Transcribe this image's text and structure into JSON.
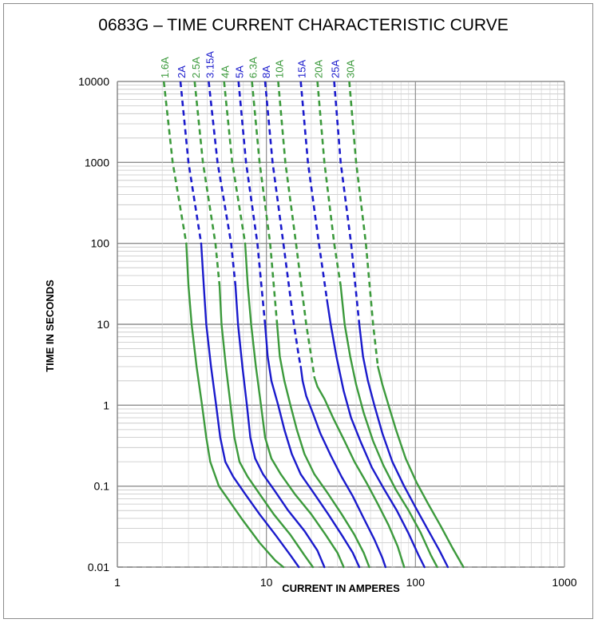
{
  "chart_data": {
    "type": "line",
    "title": "0683G – TIME CURRENT CHARACTERISTIC CURVE",
    "xlabel": "CURRENT IN AMPERES",
    "ylabel": "TIME IN SECONDS",
    "x_scale": "log",
    "y_scale": "log",
    "xlim": [
      1,
      1000
    ],
    "ylim": [
      0.01,
      10000
    ],
    "x_ticks": [
      "1",
      "10",
      "100",
      "1000"
    ],
    "y_ticks": [
      "10000",
      "1000",
      "100",
      "10",
      "1",
      "0.1",
      "0.01"
    ],
    "grid": true,
    "colors": {
      "green": "#3c9a3c",
      "blue": "#1a1acc",
      "grid": "#a6a6a6"
    },
    "series": [
      {
        "name": "1.6A",
        "color": "green",
        "dashed": [
          [
            2.05,
            10000
          ],
          [
            2.35,
            1000
          ],
          [
            2.9,
            100
          ]
        ],
        "solid": [
          [
            2.9,
            100
          ],
          [
            3.0,
            30
          ],
          [
            3.15,
            10
          ],
          [
            3.4,
            3
          ],
          [
            3.7,
            1
          ],
          [
            3.95,
            0.4
          ],
          [
            4.2,
            0.2
          ],
          [
            4.8,
            0.1
          ],
          [
            5.5,
            0.07
          ],
          [
            6.8,
            0.04
          ],
          [
            9.0,
            0.02
          ],
          [
            11.5,
            0.012
          ],
          [
            13,
            0.01
          ]
        ]
      },
      {
        "name": "2A",
        "color": "blue",
        "dashed": [
          [
            2.65,
            10000
          ],
          [
            3.0,
            1000
          ],
          [
            3.65,
            100
          ]
        ],
        "solid": [
          [
            3.65,
            100
          ],
          [
            3.8,
            30
          ],
          [
            3.95,
            10
          ],
          [
            4.25,
            3
          ],
          [
            4.6,
            1
          ],
          [
            4.9,
            0.4
          ],
          [
            5.3,
            0.2
          ],
          [
            6.0,
            0.13
          ],
          [
            7.2,
            0.08
          ],
          [
            9.0,
            0.045
          ],
          [
            11.5,
            0.025
          ],
          [
            14.5,
            0.014
          ],
          [
            16.5,
            0.01
          ]
        ]
      },
      {
        "name": "2.5A",
        "color": "green",
        "dashed": [
          [
            3.3,
            10000
          ],
          [
            3.75,
            1000
          ],
          [
            4.55,
            100
          ],
          [
            4.85,
            30
          ]
        ],
        "solid": [
          [
            4.85,
            30
          ],
          [
            5.0,
            10
          ],
          [
            5.35,
            3
          ],
          [
            5.75,
            1
          ],
          [
            6.1,
            0.4
          ],
          [
            6.6,
            0.2
          ],
          [
            7.5,
            0.13
          ],
          [
            9.0,
            0.08
          ],
          [
            11.2,
            0.045
          ],
          [
            14.5,
            0.025
          ],
          [
            18,
            0.014
          ],
          [
            20.5,
            0.01
          ]
        ]
      },
      {
        "name": "3.15A",
        "color": "blue",
        "dashed": [
          [
            4.1,
            10000
          ],
          [
            4.7,
            1000
          ],
          [
            5.8,
            100
          ],
          [
            6.2,
            30
          ]
        ],
        "solid": [
          [
            6.2,
            30
          ],
          [
            6.45,
            10
          ],
          [
            6.9,
            3
          ],
          [
            7.4,
            1
          ],
          [
            7.8,
            0.4
          ],
          [
            8.4,
            0.22
          ],
          [
            9.5,
            0.14
          ],
          [
            11.5,
            0.085
          ],
          [
            14,
            0.05
          ],
          [
            18,
            0.028
          ],
          [
            22,
            0.016
          ],
          [
            24.5,
            0.01
          ]
        ]
      },
      {
        "name": "4A",
        "color": "green",
        "dashed": [
          [
            5.2,
            10000
          ],
          [
            5.9,
            1000
          ],
          [
            7.2,
            100
          ]
        ],
        "solid": [
          [
            7.2,
            100
          ],
          [
            7.5,
            30
          ],
          [
            7.9,
            10
          ],
          [
            8.5,
            3
          ],
          [
            9.2,
            1
          ],
          [
            9.8,
            0.4
          ],
          [
            10.8,
            0.22
          ],
          [
            12.5,
            0.14
          ],
          [
            15.5,
            0.08
          ],
          [
            20,
            0.045
          ],
          [
            25,
            0.025
          ],
          [
            30,
            0.015
          ],
          [
            33,
            0.01
          ]
        ]
      },
      {
        "name": "5A",
        "color": "blue",
        "dashed": [
          [
            6.5,
            10000
          ],
          [
            7.3,
            1000
          ],
          [
            8.7,
            100
          ],
          [
            9.8,
            10
          ]
        ],
        "solid": [
          [
            9.8,
            10
          ],
          [
            10.2,
            4
          ],
          [
            10.8,
            2
          ],
          [
            12,
            1
          ],
          [
            13.2,
            0.5
          ],
          [
            14.8,
            0.25
          ],
          [
            17,
            0.14
          ],
          [
            21,
            0.08
          ],
          [
            26,
            0.045
          ],
          [
            32,
            0.025
          ],
          [
            38,
            0.015
          ],
          [
            42,
            0.01
          ]
        ]
      },
      {
        "name": "6.3A",
        "color": "green",
        "dashed": [
          [
            8.0,
            10000
          ],
          [
            9.0,
            1000
          ],
          [
            10.6,
            100
          ],
          [
            11.8,
            10
          ]
        ],
        "solid": [
          [
            11.8,
            10
          ],
          [
            12.3,
            4
          ],
          [
            13.2,
            2
          ],
          [
            14.5,
            1
          ],
          [
            16,
            0.5
          ],
          [
            18,
            0.25
          ],
          [
            21,
            0.14
          ],
          [
            26,
            0.08
          ],
          [
            32,
            0.045
          ],
          [
            39,
            0.025
          ],
          [
            45,
            0.015
          ],
          [
            49,
            0.01
          ]
        ]
      },
      {
        "name": "8A",
        "color": "blue",
        "dashed": [
          [
            9.8,
            10000
          ],
          [
            11.0,
            1000
          ],
          [
            13.0,
            100
          ],
          [
            15.3,
            10
          ],
          [
            16.5,
            4
          ],
          [
            17.0,
            3
          ]
        ],
        "solid": [
          [
            17.0,
            3
          ],
          [
            17.5,
            2
          ],
          [
            18.5,
            1.3
          ],
          [
            20.5,
            0.8
          ],
          [
            23,
            0.45
          ],
          [
            27,
            0.24
          ],
          [
            32,
            0.13
          ],
          [
            38,
            0.075
          ],
          [
            45,
            0.04
          ],
          [
            53,
            0.022
          ],
          [
            60,
            0.013
          ],
          [
            63,
            0.01
          ]
        ]
      },
      {
        "name": "10A",
        "color": "green",
        "dashed": [
          [
            12.0,
            10000
          ],
          [
            13.4,
            1000
          ],
          [
            15.8,
            100
          ],
          [
            18.5,
            10
          ],
          [
            20.5,
            3
          ],
          [
            21,
            2.2
          ]
        ],
        "solid": [
          [
            21,
            2.2
          ],
          [
            22,
            1.7
          ],
          [
            24.5,
            1.2
          ],
          [
            28,
            0.7
          ],
          [
            33,
            0.38
          ],
          [
            39,
            0.2
          ],
          [
            47,
            0.11
          ],
          [
            56,
            0.06
          ],
          [
            66,
            0.033
          ],
          [
            76,
            0.018
          ],
          [
            84,
            0.01
          ]
        ]
      },
      {
        "name": "15A",
        "color": "blue",
        "dashed": [
          [
            17.0,
            10000
          ],
          [
            19.0,
            1000
          ],
          [
            22.5,
            100
          ],
          [
            25.5,
            20
          ]
        ],
        "solid": [
          [
            25.5,
            20
          ],
          [
            27,
            10
          ],
          [
            29.5,
            4
          ],
          [
            33,
            1.5
          ],
          [
            37,
            0.7
          ],
          [
            43,
            0.35
          ],
          [
            51,
            0.17
          ],
          [
            62,
            0.09
          ],
          [
            75,
            0.05
          ],
          [
            90,
            0.026
          ],
          [
            105,
            0.014
          ],
          [
            115,
            0.01
          ]
        ]
      },
      {
        "name": "20A",
        "color": "green",
        "dashed": [
          [
            22.0,
            10000
          ],
          [
            24.5,
            1000
          ],
          [
            28.5,
            100
          ],
          [
            31.5,
            30
          ]
        ],
        "solid": [
          [
            31.5,
            30
          ],
          [
            33.5,
            10
          ],
          [
            36.5,
            4
          ],
          [
            40,
            1.8
          ],
          [
            45,
            0.8
          ],
          [
            52,
            0.36
          ],
          [
            61,
            0.18
          ],
          [
            74,
            0.09
          ],
          [
            90,
            0.05
          ],
          [
            108,
            0.027
          ],
          [
            127,
            0.014
          ],
          [
            140,
            0.01
          ]
        ]
      },
      {
        "name": "25A",
        "color": "blue",
        "dashed": [
          [
            28.5,
            10000
          ],
          [
            31.5,
            1000
          ],
          [
            37,
            100
          ],
          [
            42,
            10
          ]
        ],
        "solid": [
          [
            42,
            10
          ],
          [
            44.5,
            4
          ],
          [
            48,
            2
          ],
          [
            53,
            1
          ],
          [
            60,
            0.45
          ],
          [
            70,
            0.2
          ],
          [
            84,
            0.1
          ],
          [
            100,
            0.055
          ],
          [
            120,
            0.03
          ],
          [
            145,
            0.016
          ],
          [
            165,
            0.01
          ]
        ]
      },
      {
        "name": "30A",
        "color": "green",
        "dashed": [
          [
            36.0,
            10000
          ],
          [
            40.0,
            1000
          ],
          [
            46.5,
            100
          ],
          [
            52,
            10
          ],
          [
            55,
            4
          ],
          [
            56,
            3
          ]
        ],
        "solid": [
          [
            56,
            3
          ],
          [
            60,
            1.8
          ],
          [
            66,
            1
          ],
          [
            74,
            0.5
          ],
          [
            86,
            0.22
          ],
          [
            102,
            0.11
          ],
          [
            122,
            0.06
          ],
          [
            148,
            0.032
          ],
          [
            178,
            0.017
          ],
          [
            210,
            0.01
          ]
        ]
      }
    ]
  }
}
